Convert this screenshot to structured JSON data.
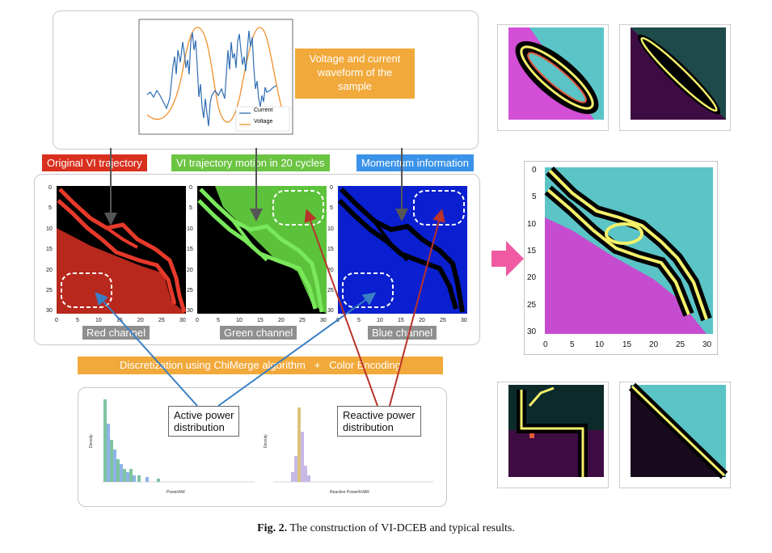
{
  "waveform": {
    "legend_current": "Current",
    "legend_voltage": "Voltage",
    "callout": [
      "Voltage and current",
      "waveform of the",
      "sample"
    ]
  },
  "tags": {
    "original": "Original VI trajectory",
    "motion": "VI trajectory motion in 20 cycles",
    "momentum": "Momentum information"
  },
  "channels": {
    "red": "Red channel",
    "green": "Green channel",
    "blue": "Blue channel"
  },
  "plot_ticks": {
    "y": [
      "0",
      "5",
      "10",
      "15",
      "20",
      "25",
      "30"
    ],
    "x": [
      "0",
      "5",
      "10",
      "15",
      "20",
      "25",
      "30"
    ]
  },
  "discretization": {
    "left": "Discretization using ChiMerge algorithm",
    "plus": "+",
    "right": "Color Encoding"
  },
  "distributions": {
    "active_callout": [
      "Active power",
      "distribution"
    ],
    "reactive_callout": [
      "Reactive power",
      "distribution"
    ],
    "active_xlabel": "Power/kW",
    "reactive_xlabel": "Reactive Power/kVAR",
    "ylabel": "Density"
  },
  "caption": {
    "label": "Fig. 2.",
    "text": "The construction of VI-DCEB and typical results."
  },
  "colors": {
    "red_tag": "#d9301e",
    "green_tag": "#6cc443",
    "blue_tag": "#3a93e8",
    "orange": "#f2a93b",
    "pink_arrow": "#ef5aa3",
    "teal": "#5bc4c6",
    "magenta": "#d24fd6",
    "yellow": "#f4f06a"
  }
}
